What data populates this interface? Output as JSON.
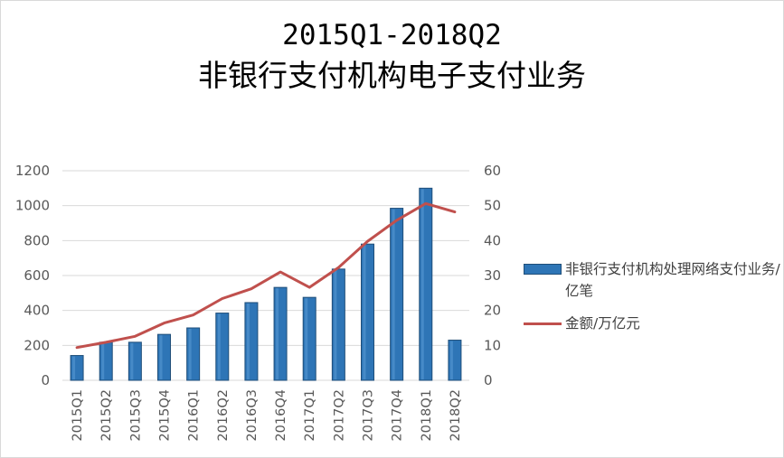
{
  "title_line1": "2015Q1-2018Q2",
  "title_line2": "非银行支付机构电子支付业务",
  "colors": {
    "bar": "#2e75b6",
    "bar_edge": "#1f4e79",
    "bar_highlight": "#5b9bd5",
    "line": "#c0504d",
    "grid": "#d9d9d9",
    "tick_text": "#595959"
  },
  "chart_data": {
    "type": "bar",
    "categories": [
      "2015Q1",
      "2015Q2",
      "2015Q3",
      "2015Q4",
      "2016Q1",
      "2016Q2",
      "2016Q3",
      "2016Q4",
      "2017Q1",
      "2017Q2",
      "2017Q3",
      "2017Q4",
      "2018Q1",
      "2018Q2"
    ],
    "series": [
      {
        "name": "非银行支付机构处理网络支付业务/亿笔",
        "type": "bar",
        "axis": "left",
        "values": [
          142,
          218,
          218,
          263,
          300,
          385,
          445,
          532,
          475,
          637,
          780,
          985,
          1100,
          230
        ]
      },
      {
        "name": "金额/万亿元",
        "type": "line",
        "axis": "right",
        "values": [
          9.4,
          10.9,
          12.6,
          16.4,
          18.7,
          23.4,
          26.2,
          31.0,
          26.6,
          32.3,
          39.8,
          45.8,
          50.6,
          48.2
        ]
      }
    ],
    "y_left": {
      "lim": [
        0,
        1200
      ],
      "ticks": [
        "0",
        "200",
        "400",
        "600",
        "800",
        "1000",
        "1200"
      ]
    },
    "y_right": {
      "lim": [
        0,
        60
      ],
      "ticks": [
        "0",
        "10",
        "20",
        "30",
        "40",
        "50",
        "60"
      ]
    },
    "grid": true,
    "legend_position": "right"
  },
  "legend": {
    "bar_label": "非银行支付机构处理网络支付业务/亿笔",
    "line_label": "金额/万亿元"
  }
}
